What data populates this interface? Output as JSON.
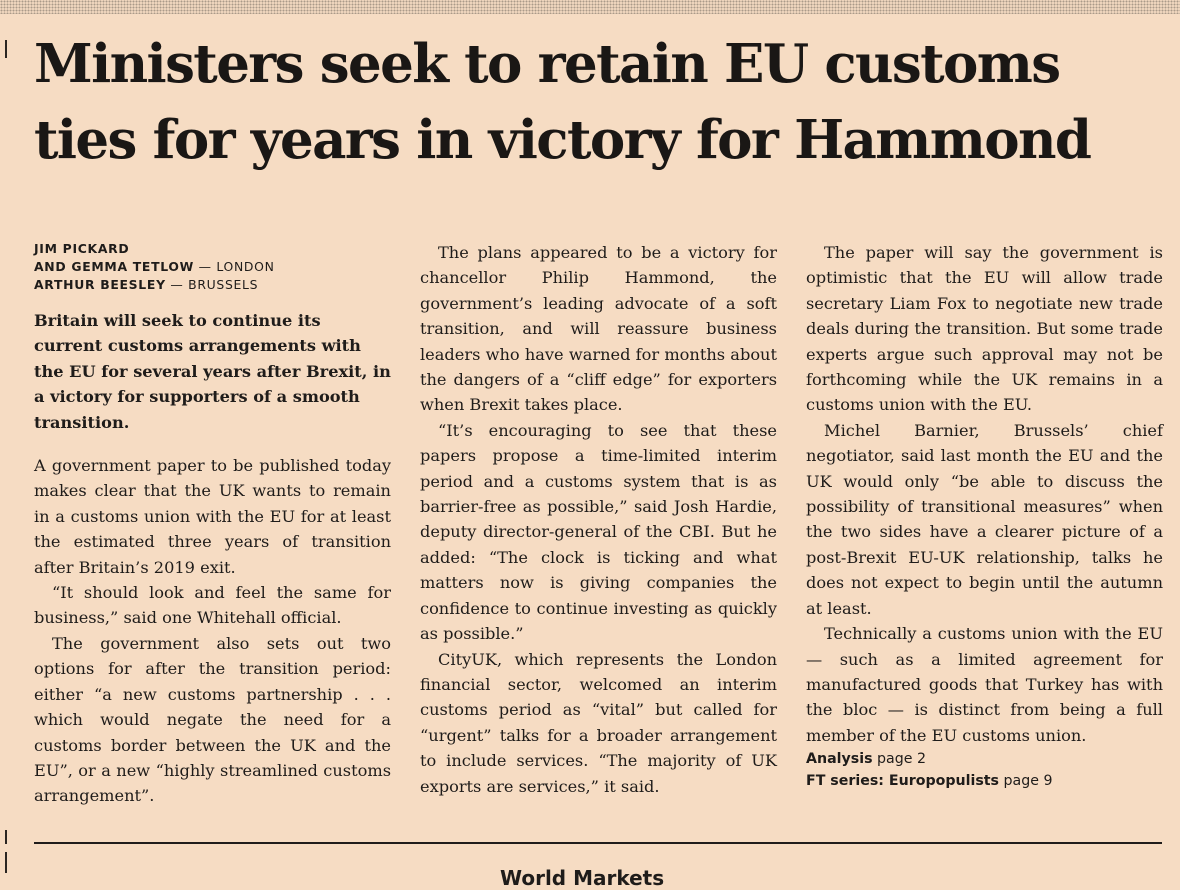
{
  "headline": "Ministers seek to retain EU customs ties for years in victory for Hammond",
  "byline": {
    "line1": "JIM PICKARD",
    "line2_name": "AND GEMMA TETLOW",
    "line2_place": " — LONDON",
    "line3_name": "ARTHUR BEESLEY",
    "line3_place": " — BRUSSELS"
  },
  "standfirst": "Britain will seek to continue its current customs arrangements with the EU for several years after Brexit, in a victory for supporters of a smooth transition.",
  "column1": [
    "A government paper to be published today makes clear that the UK wants to remain in a customs union with the EU for at least the estimated three years of transition after Britain’s 2019 exit.",
    "“It should look and feel the same for business,” said one Whitehall official.",
    "The government also sets out two options for after the transition period: either “a new customs partnership . . . which would negate the need for a customs border between the UK and the EU”, or a new “highly streamlined customs arrangement”."
  ],
  "column2": [
    "The plans appeared to be a victory for chancellor Philip Hammond, the government’s leading advocate of a soft transition, and will reassure business leaders who have warned for months about the dangers of a “cliff edge” for exporters when Brexit takes place.",
    "“It’s encouraging to see that these papers propose a time-limited interim period and a customs system that is as barrier-free as possible,” said Josh Hardie, deputy director-general of the CBI. But he added: “The clock is ticking and what matters now is giving companies the confidence to continue investing as quickly as possible.”",
    "CityUK, which represents the London financial sector, welcomed an interim customs period as “vital” but called for “urgent” talks for a broader arrangement to include services. “The majority of UK exports are services,” it said."
  ],
  "column3": [
    "The paper will say the government is optimistic that the EU will allow trade secretary Liam Fox to negotiate new trade deals during the transition. But some trade experts argue such approval may not be forthcoming while the UK remains in a customs union with the EU.",
    "Michel Barnier, Brussels’ chief negotiator, said last month the EU and the UK would only “be able to discuss the possibility of transitional measures” when the two sides have a clearer picture of a post-Brexit EU-UK relationship, talks he does not expect to begin until the autumn at least.",
    "Technically a customs union with the EU — such as a limited agreement for manufactured goods that Turkey has with the bloc — is distinct from being a full member of the EU customs union."
  ],
  "refs": {
    "analysis_label": "Analysis",
    "analysis_page": " page 2",
    "series_label": "FT series: Europopulists",
    "series_page": " page 9"
  },
  "teaser": "World Markets"
}
